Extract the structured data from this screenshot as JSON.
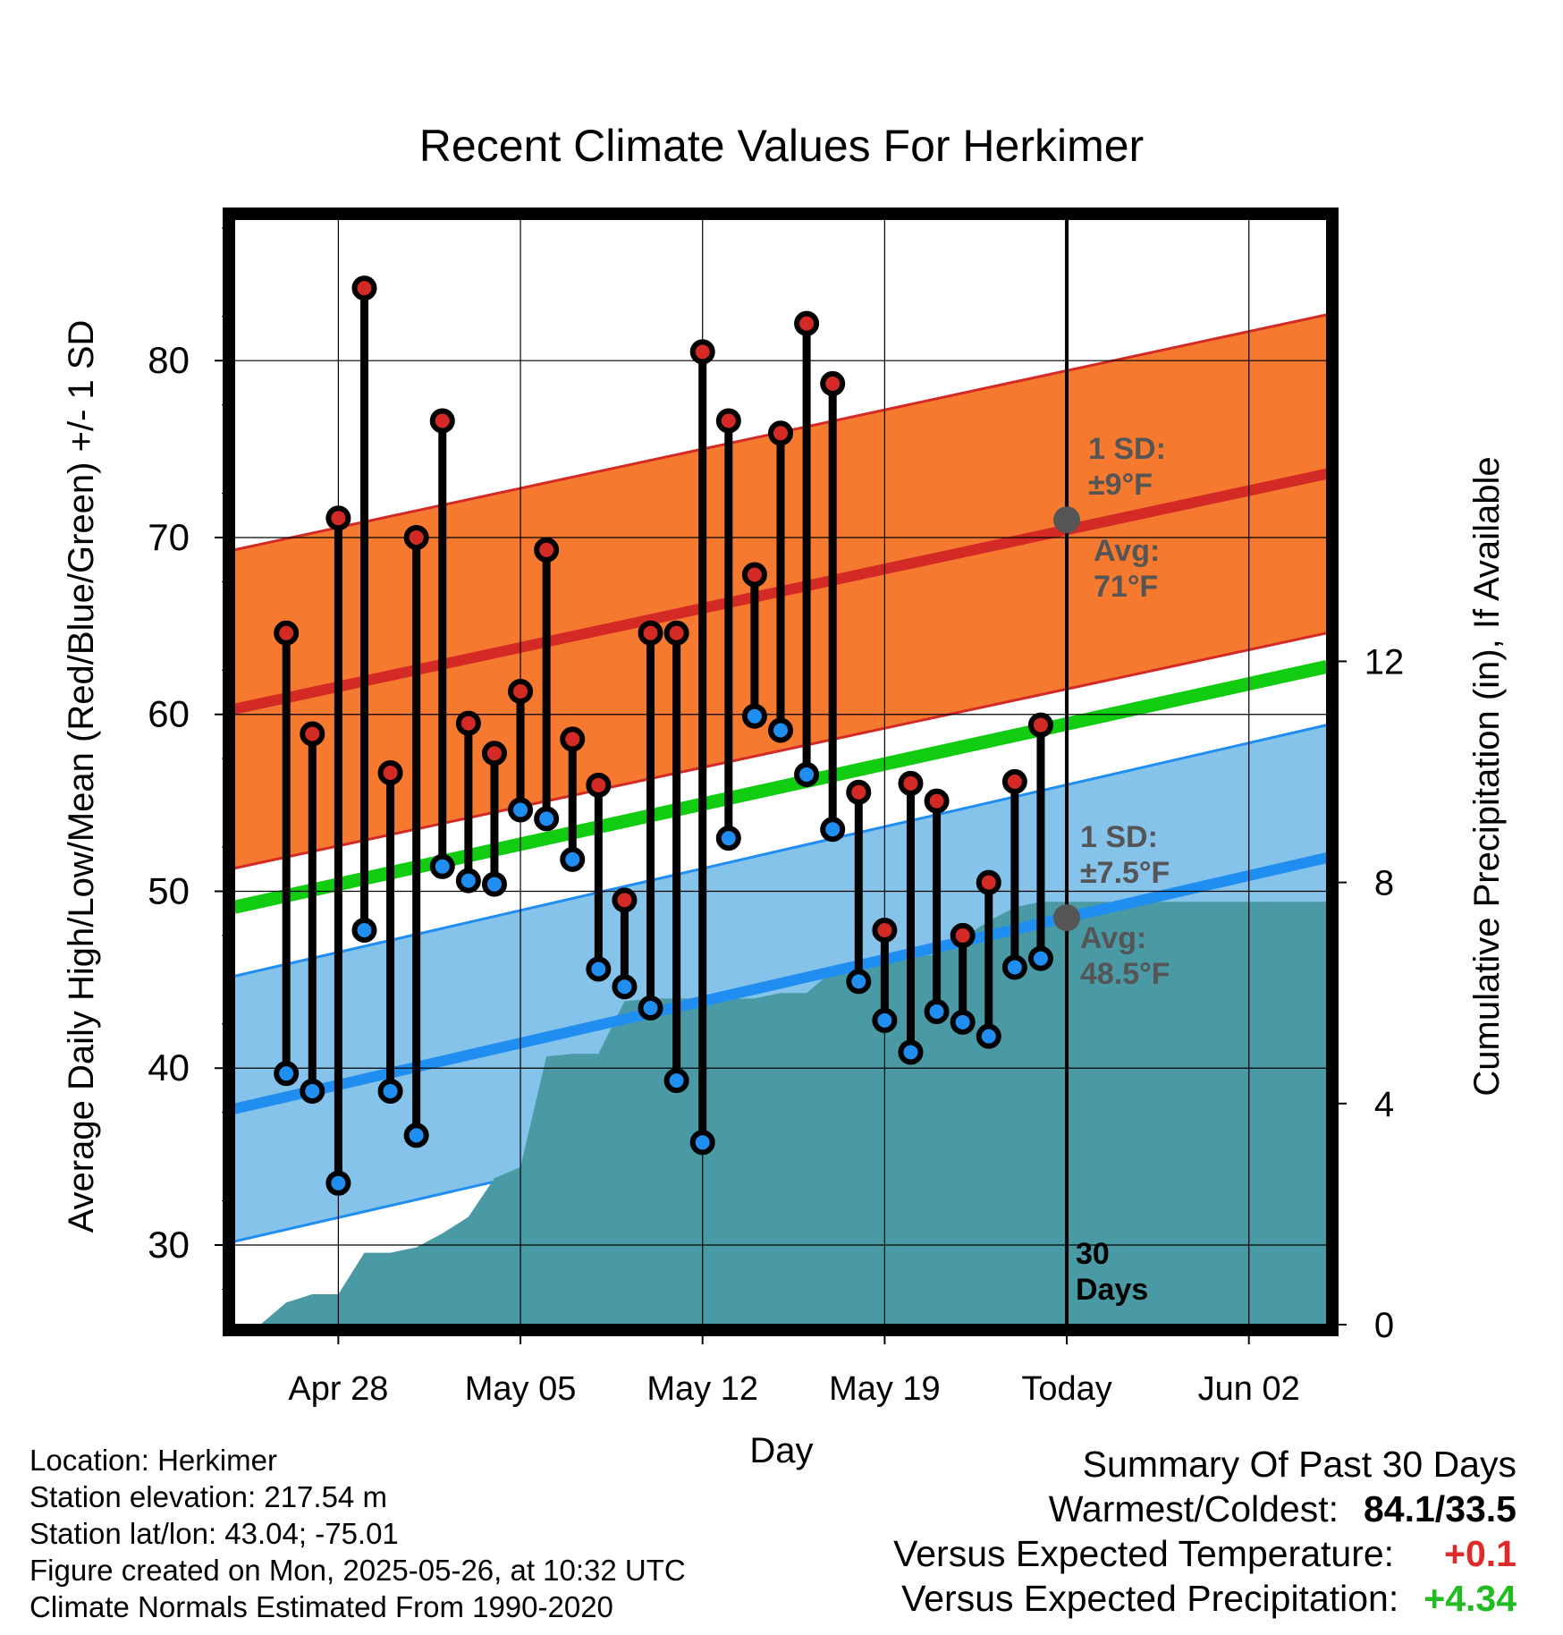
{
  "chart_data": {
    "type": "line",
    "title": "Recent Climate Values For Herkimer",
    "xlabel": "Day",
    "ylabel": "Average Daily High/Low/Mean (Red/Blue/Green) +/- 1 SD",
    "y2label": "Cumulative Precipitation (in), If Available",
    "ylim": [
      25.5,
      88
    ],
    "y2lim": [
      0,
      20
    ],
    "yticks": [
      "30",
      "40",
      "50",
      "60",
      "70",
      "80"
    ],
    "y2ticks": [
      "0",
      "4",
      "8",
      "12"
    ],
    "xlim": [
      "2025-04-24",
      "2025-06-05"
    ],
    "xticks": [
      {
        "date": "2025-04-28",
        "label": "Apr 28"
      },
      {
        "date": "2025-05-05",
        "label": "May 05"
      },
      {
        "date": "2025-05-12",
        "label": "May 12"
      },
      {
        "date": "2025-05-19",
        "label": "May 19"
      },
      {
        "date": "2025-05-26",
        "label": "Today"
      },
      {
        "date": "2025-06-02",
        "label": "Jun 02"
      }
    ],
    "grid": true,
    "today": "2025-05-26",
    "today_label": "30\nDays",
    "normals": {
      "high_avg": {
        "start": 60.3,
        "end": 73.6
      },
      "high_sd": 9,
      "low_avg": {
        "start": 37.7,
        "end": 51.9
      },
      "low_sd": 7.5,
      "mean_avg": {
        "start": 49.1,
        "end": 62.7
      },
      "colors": {
        "high_band": "#f57a30",
        "high_line": "#d42a25",
        "high_edge": "#d42a25",
        "low_band": "#85c3ea",
        "low_line": "#1f8ef0",
        "low_edge": "#1f8ef0",
        "mean_line": "#11cc11",
        "precip": "#4a9aa5"
      }
    },
    "annotations": {
      "high_sd": "1 SD:\n±9°F",
      "high_avg": "Avg:\n71°F",
      "high_avg_value": 71,
      "low_sd": "1 SD:\n±7.5°F",
      "low_avg": "Avg:\n48.5°F",
      "low_avg_value": 48.5
    },
    "series": [
      {
        "name": "High",
        "color": "#d42a25",
        "x": [
          "2025-04-26",
          "2025-04-27",
          "2025-04-28",
          "2025-04-29",
          "2025-04-30",
          "2025-05-01",
          "2025-05-02",
          "2025-05-03",
          "2025-05-04",
          "2025-05-05",
          "2025-05-06",
          "2025-05-07",
          "2025-05-08",
          "2025-05-09",
          "2025-05-10",
          "2025-05-11",
          "2025-05-12",
          "2025-05-13",
          "2025-05-14",
          "2025-05-15",
          "2025-05-16",
          "2025-05-17",
          "2025-05-18",
          "2025-05-19",
          "2025-05-20",
          "2025-05-21",
          "2025-05-22",
          "2025-05-23",
          "2025-05-24",
          "2025-05-25"
        ],
        "values": [
          64.6,
          58.9,
          71.1,
          84.1,
          56.7,
          70.0,
          76.6,
          59.5,
          57.8,
          61.3,
          69.3,
          58.6,
          56.0,
          49.5,
          64.6,
          64.6,
          80.5,
          76.6,
          67.9,
          75.9,
          82.1,
          78.7,
          55.6,
          47.8,
          56.1,
          55.1,
          47.5,
          50.5,
          56.2,
          59.4
        ]
      },
      {
        "name": "Low",
        "color": "#1f8ef0",
        "x": [
          "2025-04-26",
          "2025-04-27",
          "2025-04-28",
          "2025-04-29",
          "2025-04-30",
          "2025-05-01",
          "2025-05-02",
          "2025-05-03",
          "2025-05-04",
          "2025-05-05",
          "2025-05-06",
          "2025-05-07",
          "2025-05-08",
          "2025-05-09",
          "2025-05-10",
          "2025-05-11",
          "2025-05-12",
          "2025-05-13",
          "2025-05-14",
          "2025-05-15",
          "2025-05-16",
          "2025-05-17",
          "2025-05-18",
          "2025-05-19",
          "2025-05-20",
          "2025-05-21",
          "2025-05-22",
          "2025-05-23",
          "2025-05-24",
          "2025-05-25"
        ],
        "values": [
          39.7,
          38.7,
          33.5,
          47.8,
          38.7,
          36.2,
          51.4,
          50.6,
          50.4,
          54.6,
          54.1,
          51.8,
          45.6,
          44.6,
          43.4,
          39.3,
          35.8,
          53.0,
          59.9,
          59.1,
          56.6,
          53.5,
          44.9,
          42.7,
          40.9,
          43.2,
          42.6,
          41.8,
          45.7,
          46.2
        ]
      },
      {
        "name": "Cumulative Precipitation",
        "color": "#4a9aa5",
        "x": [
          "2025-04-24",
          "2025-04-25",
          "2025-04-26",
          "2025-04-27",
          "2025-04-28",
          "2025-04-29",
          "2025-04-30",
          "2025-05-01",
          "2025-05-02",
          "2025-05-03",
          "2025-05-04",
          "2025-05-05",
          "2025-05-06",
          "2025-05-07",
          "2025-05-08",
          "2025-05-09",
          "2025-05-10",
          "2025-05-11",
          "2025-05-12",
          "2025-05-13",
          "2025-05-14",
          "2025-05-15",
          "2025-05-16",
          "2025-05-17",
          "2025-05-18",
          "2025-05-19",
          "2025-05-20",
          "2025-05-21",
          "2025-05-22",
          "2025-05-23",
          "2025-05-24",
          "2025-05-25",
          "2025-06-05"
        ],
        "values": [
          0.0,
          0.0,
          0.4,
          0.55,
          0.55,
          1.3,
          1.3,
          1.4,
          1.65,
          1.95,
          2.65,
          2.85,
          4.85,
          4.9,
          4.9,
          5.85,
          5.9,
          5.9,
          5.9,
          5.9,
          5.9,
          6.0,
          6.0,
          6.4,
          6.6,
          6.6,
          6.65,
          6.7,
          7.0,
          7.3,
          7.55,
          7.65,
          7.65
        ]
      }
    ]
  },
  "location": {
    "location": "Location: Herkimer",
    "elevation": "Station elevation: 217.54 m",
    "latlon": "Station lat/lon: 43.04; -75.01",
    "created": "Figure created on Mon, 2025-05-26, at 10:32 UTC",
    "normals": "Climate Normals Estimated From 1990-2020"
  },
  "summary": {
    "title": "Summary Of Past 30 Days",
    "warm_cold_label": "Warmest/Coldest:",
    "warm_cold_value": "84.1/33.5",
    "temp_label": "Versus Expected Temperature:",
    "temp_value": "+0.1",
    "temp_color": "#dd2a2a",
    "precip_label": "Versus Expected Precipitation:",
    "precip_value": "+4.34",
    "precip_color": "#22bb22"
  }
}
